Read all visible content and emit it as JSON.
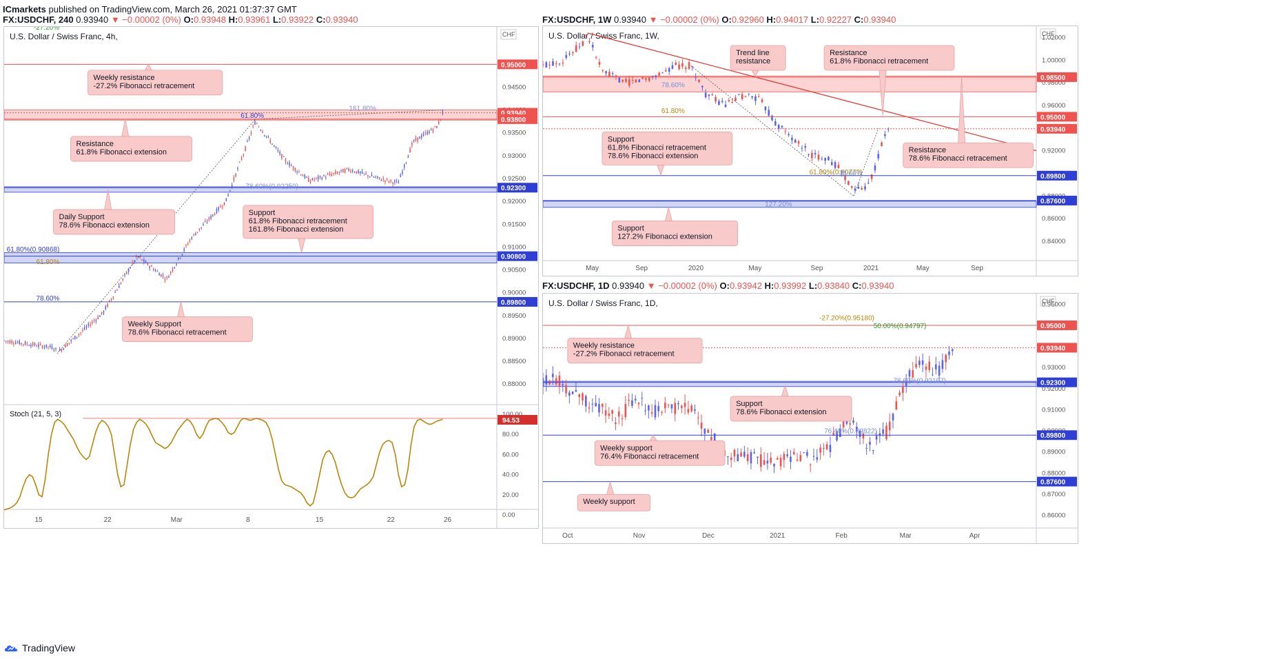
{
  "publish": {
    "author": "ICmarkets",
    "text": " published on TradingView.com, March 26, 2021 01:37:37 GMT"
  },
  "brand": "TradingView",
  "colors": {
    "up": "#5b63e8",
    "down": "#ef5350",
    "resistance": "#ef5350",
    "support": "#2f3fd6",
    "stoch": "#b8860b",
    "trend": "#e53935"
  },
  "charts": [
    {
      "id": "h4",
      "header": {
        "symbol": "FX:USDCHF, 240",
        "last": "0.93940",
        "change": "−0.00002 (0%)",
        "o": "0.93948",
        "h": "0.93961",
        "l": "0.93922",
        "c": "0.93940"
      },
      "title": "U.S. Dollar / Swiss Franc, 4h,",
      "currency": "CHF",
      "ymin": 0.8755,
      "ymax": 0.9582,
      "yticks": [
        "0.95000",
        "0.94500",
        "0.94000",
        "0.93500",
        "0.93000",
        "0.92500",
        "0.92000",
        "0.91500",
        "0.91000",
        "0.90500",
        "0.90000",
        "0.89500",
        "0.89000",
        "0.88500",
        "0.88000"
      ],
      "ytick_values": [
        0.95,
        0.945,
        0.94,
        0.935,
        0.93,
        0.925,
        0.92,
        0.915,
        0.91,
        0.905,
        0.9,
        0.895,
        0.89,
        0.885,
        0.88
      ],
      "xticks": [
        "15",
        "22",
        "Mar",
        "8",
        "15",
        "22",
        "26"
      ],
      "xtick_pos": [
        0.07,
        0.21,
        0.35,
        0.495,
        0.64,
        0.785,
        0.9
      ],
      "hlines": [
        {
          "v": 0.95,
          "color": "#ef5350",
          "label": "0.95000"
        },
        {
          "v": 0.9394,
          "color": "#ef5350",
          "label": "0.93940",
          "dashed": true
        },
        {
          "v": 0.938,
          "color": "#ef5350",
          "label": "0.93800"
        },
        {
          "v": 0.923,
          "color": "#2f3fd6",
          "label": "0.92300"
        },
        {
          "v": 0.908,
          "color": "#2f3fd6",
          "label": "0.90800"
        },
        {
          "v": 0.898,
          "color": "#2f3fd6",
          "label": "0.89800"
        }
      ],
      "zones": [
        {
          "from": 0.9378,
          "to": 0.94,
          "type": "res"
        },
        {
          "from": 0.922,
          "to": 0.9232,
          "type": "sup"
        },
        {
          "from": 0.9065,
          "to": 0.9088,
          "type": "sup"
        }
      ],
      "fib_labels": [
        {
          "text": "-27.20%",
          "v": 0.9573,
          "x": 0.06,
          "color": "#2e9e2e"
        },
        {
          "text": "161.80%",
          "v": 0.9396,
          "x": 0.7,
          "color": "#7a8fd6"
        },
        {
          "text": "61.80%",
          "v": 0.938,
          "x": 0.48,
          "color": "#2f3fd6"
        },
        {
          "text": "78.60%(0.92250)",
          "v": 0.9225,
          "x": 0.49,
          "color": "#7a8fd6"
        },
        {
          "text": "61.80%(0.90868)",
          "v": 0.9087,
          "x": 0.005,
          "color": "#2f3fd6"
        },
        {
          "text": "61.80%",
          "v": 0.906,
          "x": 0.065,
          "color": "#b8860b"
        },
        {
          "text": "78.60%",
          "v": 0.898,
          "x": 0.065,
          "color": "#2f3fd6"
        }
      ],
      "callouts": [
        {
          "lines": [
            "Weekly resistance",
            "-27.2% Fibonacci retracement"
          ],
          "x": 0.17,
          "v": 0.946,
          "dir": "up",
          "tipv": 0.95
        },
        {
          "lines": [
            "Resistance",
            "61.8% Fibonacci extension"
          ],
          "x": 0.135,
          "v": 0.9315,
          "dir": "up",
          "tipv": 0.9381
        },
        {
          "lines": [
            "Daily Support",
            "78.6% Fibonacci extension"
          ],
          "x": 0.1,
          "v": 0.9155,
          "dir": "up",
          "tipv": 0.9226
        },
        {
          "lines": [
            "Support",
            "61.8% Fibonacci retracement",
            "161.8% Fibonacci extension"
          ],
          "x": 0.485,
          "v": 0.9155,
          "dir": "down",
          "tipv": 0.9088
        },
        {
          "lines": [
            "Weekly Support",
            "78.6% Fibonacci retracement"
          ],
          "x": 0.24,
          "v": 0.892,
          "dir": "up",
          "tipv": 0.898
        }
      ],
      "stoch": {
        "label": "Stoch (21, 5, 3)",
        "value": "94.53",
        "ticks": [
          "100.00",
          "80.00",
          "60.00",
          "40.00",
          "20.00",
          "0.00"
        ],
        "values": [
          5,
          6,
          7,
          9,
          12,
          18,
          28,
          36,
          40,
          38,
          30,
          20,
          18,
          35,
          60,
          80,
          92,
          95,
          93,
          90,
          85,
          80,
          75,
          68,
          62,
          58,
          55,
          58,
          70,
          82,
          90,
          94,
          92,
          88,
          80,
          60,
          40,
          28,
          30,
          50,
          70,
          85,
          92,
          95,
          93,
          90,
          85,
          78,
          72,
          70,
          68,
          66,
          68,
          72,
          78,
          84,
          88,
          92,
          95,
          93,
          88,
          80,
          76,
          80,
          88,
          94,
          95,
          96,
          95,
          92,
          88,
          82,
          80,
          82,
          88,
          94,
          96,
          95,
          94,
          95,
          96,
          95,
          94,
          92,
          86,
          75,
          60,
          45,
          34,
          30,
          29,
          28,
          26,
          24,
          22,
          18,
          12,
          9,
          12,
          25,
          40,
          55,
          62,
          64,
          60,
          52,
          40,
          30,
          22,
          18,
          17,
          18,
          22,
          26,
          28,
          30,
          33,
          38,
          50,
          62,
          70,
          73,
          74,
          72,
          60,
          40,
          28,
          30,
          45,
          70,
          88,
          94,
          95,
          93,
          91,
          90,
          91,
          93,
          94,
          95
        ]
      },
      "overlay_lines": [
        {
          "from": [
            0.11,
            0.887
          ],
          "to": [
            0.51,
            0.938
          ],
          "dotted": true
        },
        {
          "from": [
            0.51,
            0.938
          ],
          "to": [
            0.89,
            0.94
          ],
          "dotted": true
        }
      ]
    },
    {
      "id": "w1",
      "header": {
        "symbol": "FX:USDCHF, 1W",
        "last": "0.93940",
        "change": "−0.00002 (0%)",
        "o": "0.92960",
        "h": "0.94017",
        "l": "0.92227",
        "c": "0.93940"
      },
      "title": "U.S. Dollar / Swiss Franc, 1W,",
      "currency": "CHF",
      "ymin": 0.823,
      "ymax": 1.03,
      "yticks": [
        "1.02000",
        "1.00000",
        "0.98000",
        "0.96000",
        "0.94000",
        "0.92000",
        "0.90000",
        "0.88000",
        "0.86000",
        "0.84000"
      ],
      "ytick_values": [
        1.02,
        1.0,
        0.98,
        0.96,
        0.94,
        0.92,
        0.9,
        0.88,
        0.86,
        0.84
      ],
      "xticks": [
        "May",
        "Sep",
        "2020",
        "May",
        "Sep",
        "2021",
        "May",
        "Sep"
      ],
      "xtick_pos": [
        0.1,
        0.2,
        0.31,
        0.43,
        0.555,
        0.665,
        0.77,
        0.88
      ],
      "hlines": [
        {
          "v": 0.985,
          "color": "#ef5350",
          "label": "0.98500"
        },
        {
          "v": 0.95,
          "color": "#ef5350",
          "label": "0.95000"
        },
        {
          "v": 0.9394,
          "color": "#ef5350",
          "label": "0.93940",
          "dashed": true
        },
        {
          "v": 0.898,
          "color": "#2f3fd6",
          "label": "0.89800"
        },
        {
          "v": 0.876,
          "color": "#2f3fd6",
          "label": "0.87600"
        }
      ],
      "zones": [
        {
          "from": 0.972,
          "to": 0.986,
          "type": "res"
        },
        {
          "from": 0.87,
          "to": 0.8755,
          "type": "sup"
        }
      ],
      "fib_labels": [
        {
          "text": "78.60%",
          "v": 0.975,
          "x": 0.24,
          "color": "#7a8fd6"
        },
        {
          "text": "61.80%",
          "v": 0.952,
          "x": 0.24,
          "color": "#b8860b"
        },
        {
          "text": "61.80%(0.9077?)",
          "v": 0.898,
          "x": 0.54,
          "color": "#b8860b"
        },
        {
          "text": "78.60%",
          "v": 0.897,
          "x": 0.6,
          "color": "#7a8fd6"
        },
        {
          "text": "127.20%",
          "v": 0.8695,
          "x": 0.45,
          "color": "#7a8fd6"
        }
      ],
      "callouts": [
        {
          "lines": [
            "Trend line",
            "resistance"
          ],
          "x": 0.38,
          "v": 1.002,
          "dir": "down",
          "tipv": 0.986
        },
        {
          "lines": [
            "Resistance",
            "61.8% Fibonacci retracement"
          ],
          "x": 0.57,
          "v": 1.002,
          "dir": "down",
          "tipv": 0.951
        },
        {
          "lines": [
            "Support",
            "61.8% Fibonacci retracement",
            "78.6% Fibonacci extension"
          ],
          "x": 0.12,
          "v": 0.922,
          "dir": "down",
          "tipv": 0.8985
        },
        {
          "lines": [
            "Resistance",
            "78.6% Fibonacci retracement"
          ],
          "x": 0.73,
          "v": 0.916,
          "dir": "up",
          "tipv": 0.985
        },
        {
          "lines": [
            "Support",
            "127.2% Fibonacci extension"
          ],
          "x": 0.14,
          "v": 0.847,
          "dir": "up",
          "tipv": 0.87
        }
      ],
      "overlay_lines": [
        {
          "from": [
            0.09,
            1.024
          ],
          "to": [
            1.0,
            0.92
          ],
          "dotted": false,
          "color": "#e53935"
        },
        {
          "from": [
            0.3,
            0.995
          ],
          "to": [
            0.63,
            0.88
          ],
          "dotted": true
        },
        {
          "from": [
            0.63,
            0.88
          ],
          "to": [
            0.68,
            0.94
          ],
          "dotted": true
        }
      ]
    },
    {
      "id": "d1",
      "header": {
        "symbol": "FX:USDCHF, 1D",
        "last": "0.93940",
        "change": "−0.00002 (0%)",
        "o": "0.93942",
        "h": "0.93992",
        "l": "0.93840",
        "c": "0.93940"
      },
      "title": "U.S. Dollar / Swiss Franc, 1D,",
      "currency": "CHF",
      "ymin": 0.854,
      "ymax": 0.965,
      "yticks": [
        "0.96000",
        "0.95000",
        "0.94000",
        "0.93000",
        "0.92000",
        "0.91000",
        "0.90000",
        "0.89000",
        "0.88000",
        "0.87000",
        "0.86000"
      ],
      "ytick_values": [
        0.96,
        0.95,
        0.94,
        0.93,
        0.92,
        0.91,
        0.9,
        0.89,
        0.88,
        0.87,
        0.86
      ],
      "xticks": [
        "Oct",
        "Nov",
        "Dec",
        "2021",
        "Feb",
        "Mar",
        "Apr"
      ],
      "xtick_pos": [
        0.05,
        0.195,
        0.335,
        0.475,
        0.605,
        0.735,
        0.875
      ],
      "hlines": [
        {
          "v": 0.95,
          "color": "#ef5350",
          "label": "0.95000"
        },
        {
          "v": 0.9394,
          "color": "#ef5350",
          "label": "0.93940",
          "dashed": true
        },
        {
          "v": 0.923,
          "color": "#2f3fd6",
          "label": "0.92300"
        },
        {
          "v": 0.898,
          "color": "#2f3fd6",
          "label": "0.89800"
        },
        {
          "v": 0.876,
          "color": "#2f3fd6",
          "label": "0.87600"
        }
      ],
      "zones": [
        {
          "from": 0.921,
          "to": 0.9235,
          "type": "sup"
        }
      ],
      "fib_labels": [
        {
          "text": "-27.20%(0.95180)",
          "v": 0.9518,
          "x": 0.56,
          "color": "#b8860b"
        },
        {
          "text": "50.00%(0.94797)",
          "v": 0.948,
          "x": 0.67,
          "color": "#2e9e2e"
        },
        {
          "text": "78.60%(0.92197)",
          "v": 0.922,
          "x": 0.71,
          "color": "#7a8fd6"
        },
        {
          "text": "76.40%(0.89822)",
          "v": 0.8982,
          "x": 0.57,
          "color": "#7a8fd6"
        }
      ],
      "callouts": [
        {
          "lines": [
            "Weekly resistance",
            "-27.2% Fibonacci retracement"
          ],
          "x": 0.05,
          "v": 0.938,
          "dir": "up",
          "tipv": 0.95
        },
        {
          "lines": [
            "Support",
            "78.6% Fibonacci extension"
          ],
          "x": 0.38,
          "v": 0.9105,
          "dir": "up",
          "tipv": 0.9215
        },
        {
          "lines": [
            "Weekly support",
            "76.4% Fibonacci retracement"
          ],
          "x": 0.105,
          "v": 0.8895,
          "dir": "up",
          "tipv": 0.898
        },
        {
          "lines": [
            "Weekly support"
          ],
          "x": 0.07,
          "v": 0.866,
          "dir": "up",
          "tipv": 0.876
        }
      ],
      "overlay_lines": []
    }
  ]
}
